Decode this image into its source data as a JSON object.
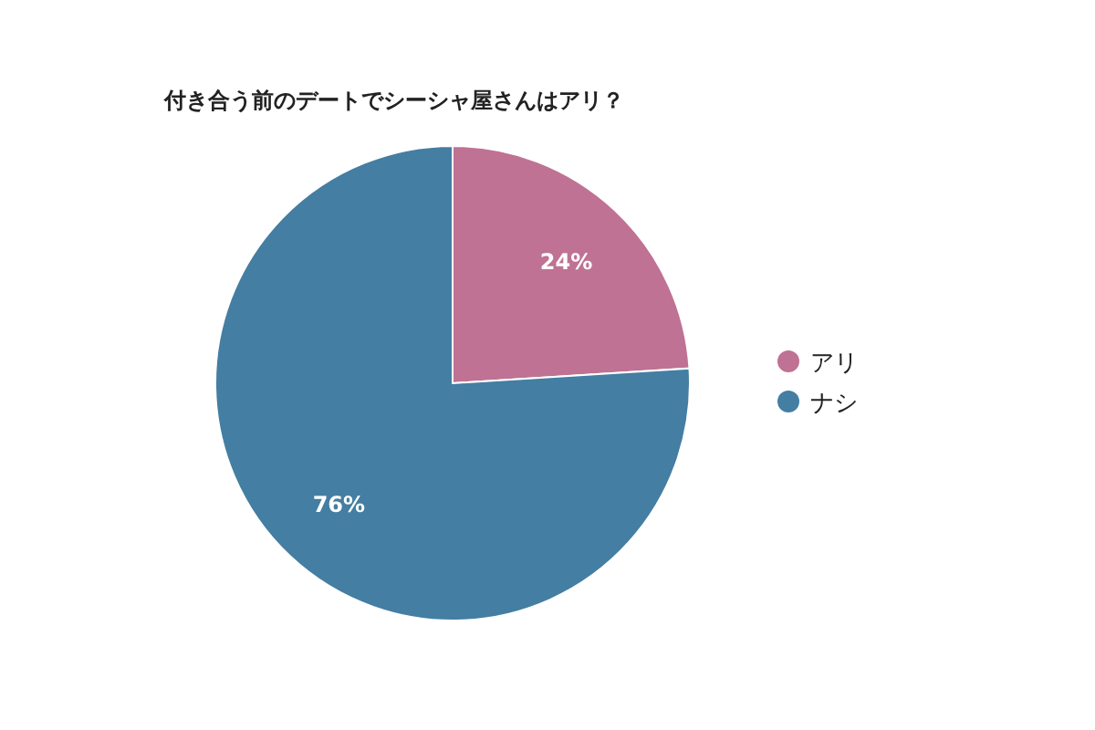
{
  "chart_data": {
    "type": "pie",
    "title": "付き合う前のデートでシーシャ屋さんはアリ？",
    "categories": [
      "アリ",
      "ナシ"
    ],
    "values": [
      24,
      76
    ],
    "colors": [
      "#bf7293",
      "#447ea2"
    ],
    "value_labels": [
      "24%",
      "76%"
    ],
    "legend": "right"
  }
}
